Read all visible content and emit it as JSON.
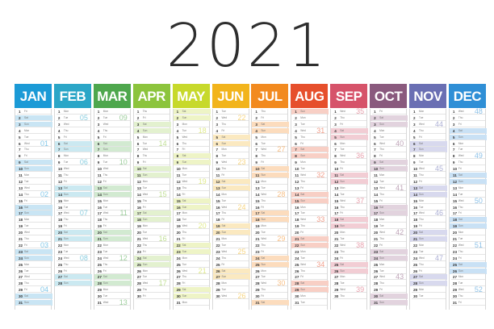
{
  "title": "2021",
  "months": [
    {
      "name": "JAN",
      "days": 31,
      "start": 5,
      "color": "#1b9ad6",
      "tint": "#c9e5f4",
      "weeks": [
        {
          "w": "01",
          "d": 6
        },
        {
          "w": "02",
          "d": 14
        },
        {
          "w": "03",
          "d": 22
        },
        {
          "w": "04",
          "d": 29
        }
      ]
    },
    {
      "name": "FEB",
      "days": 28,
      "start": 1,
      "color": "#2ba6c7",
      "tint": "#cbe9f1",
      "weeks": [
        {
          "w": "05",
          "d": 2
        },
        {
          "w": "06",
          "d": 9
        },
        {
          "w": "07",
          "d": 17
        },
        {
          "w": "08",
          "d": 24
        }
      ]
    },
    {
      "name": "MAR",
      "days": 31,
      "start": 1,
      "color": "#4ea74d",
      "tint": "#d2ead1",
      "weeks": [
        {
          "w": "09",
          "d": 2
        },
        {
          "w": "10",
          "d": 9
        },
        {
          "w": "11",
          "d": 17
        },
        {
          "w": "12",
          "d": 24
        },
        {
          "w": "13",
          "d": 31
        }
      ]
    },
    {
      "name": "APR",
      "days": 30,
      "start": 4,
      "color": "#8cc43d",
      "tint": "#e3f1cf",
      "weeks": [
        {
          "w": "14",
          "d": 6
        },
        {
          "w": "15",
          "d": 14
        },
        {
          "w": "16",
          "d": 21
        },
        {
          "w": "17",
          "d": 28
        }
      ]
    },
    {
      "name": "MAY",
      "days": 31,
      "start": 6,
      "color": "#c7d92b",
      "tint": "#eef4c6",
      "weeks": [
        {
          "w": "18",
          "d": 4
        },
        {
          "w": "19",
          "d": 12
        },
        {
          "w": "20",
          "d": 19
        },
        {
          "w": "21",
          "d": 26
        }
      ]
    },
    {
      "name": "JUN",
      "days": 30,
      "start": 2,
      "color": "#f2b41c",
      "tint": "#fbe9c0",
      "weeks": [
        {
          "w": "22",
          "d": 2
        },
        {
          "w": "23",
          "d": 9
        },
        {
          "w": "24",
          "d": 16
        },
        {
          "w": "25",
          "d": 23
        },
        {
          "w": "26",
          "d": 30
        }
      ]
    },
    {
      "name": "JUL",
      "days": 31,
      "start": 4,
      "color": "#f28a1f",
      "tint": "#fcdcbd",
      "weeks": [
        {
          "w": "27",
          "d": 7
        },
        {
          "w": "28",
          "d": 14
        },
        {
          "w": "29",
          "d": 21
        },
        {
          "w": "30",
          "d": 28
        }
      ]
    },
    {
      "name": "AUG",
      "days": 31,
      "start": 0,
      "color": "#e64f2c",
      "tint": "#f8cfc5",
      "weeks": [
        {
          "w": "31",
          "d": 4
        },
        {
          "w": "32",
          "d": 11
        },
        {
          "w": "33",
          "d": 18
        },
        {
          "w": "34",
          "d": 25
        }
      ]
    },
    {
      "name": "SEP",
      "days": 30,
      "start": 3,
      "color": "#d6536a",
      "tint": "#f2cdd4",
      "weeks": [
        {
          "w": "35",
          "d": 1
        },
        {
          "w": "36",
          "d": 8
        },
        {
          "w": "37",
          "d": 15
        },
        {
          "w": "38",
          "d": 22
        },
        {
          "w": "39",
          "d": 29
        }
      ]
    },
    {
      "name": "OCT",
      "days": 31,
      "start": 5,
      "color": "#8a5a7e",
      "tint": "#e2d3de",
      "weeks": [
        {
          "w": "40",
          "d": 6
        },
        {
          "w": "41",
          "d": 13
        },
        {
          "w": "42",
          "d": 20
        },
        {
          "w": "43",
          "d": 27
        }
      ]
    },
    {
      "name": "NOV",
      "days": 30,
      "start": 1,
      "color": "#6a6fb3",
      "tint": "#d8d9ee",
      "weeks": [
        {
          "w": "44",
          "d": 3
        },
        {
          "w": "45",
          "d": 10
        },
        {
          "w": "46",
          "d": 17
        },
        {
          "w": "47",
          "d": 24
        }
      ]
    },
    {
      "name": "DEC",
      "days": 31,
      "start": 3,
      "color": "#2f8fd6",
      "tint": "#c9e1f5",
      "weeks": [
        {
          "w": "48",
          "d": 1
        },
        {
          "w": "49",
          "d": 8
        },
        {
          "w": "50",
          "d": 15
        },
        {
          "w": "51",
          "d": 22
        },
        {
          "w": "52",
          "d": 29
        }
      ]
    }
  ],
  "day_abbr": [
    "Sun",
    "Mon",
    "Tue",
    "Wed",
    "Thu",
    "Fri",
    "Sat"
  ]
}
